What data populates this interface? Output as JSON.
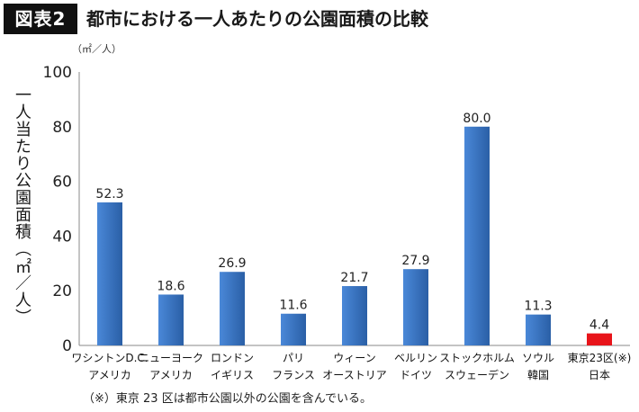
{
  "header": {
    "badge": "図表2",
    "title": "都市における一人あたりの公園面積の比較"
  },
  "footnote": "（※）東京 23 区は都市公園以外の公園を含んでいる。",
  "chart_data": {
    "type": "bar",
    "title": "都市における一人あたりの公園面積の比較",
    "unit_label": "（㎡／人）",
    "ylabel": "一人当たり公園面積（㎡／人）",
    "xlabel": "",
    "ylim": [
      0,
      100
    ],
    "yticks": [
      0,
      20,
      40,
      60,
      80,
      100
    ],
    "grid": false,
    "categories": [
      {
        "city": "ワシントンD.C.",
        "country": "アメリカ"
      },
      {
        "city": "ニューヨーク",
        "country": "アメリカ"
      },
      {
        "city": "ロンドン",
        "country": "イギリス"
      },
      {
        "city": "パリ",
        "country": "フランス"
      },
      {
        "city": "ウィーン",
        "country": "オーストリア"
      },
      {
        "city": "ベルリン",
        "country": "ドイツ"
      },
      {
        "city": "ストックホルム",
        "country": "スウェーデン"
      },
      {
        "city": "ソウル",
        "country": "韓国"
      },
      {
        "city": "東京23区(※)",
        "country": "日本"
      }
    ],
    "values": [
      52.3,
      18.6,
      26.9,
      11.6,
      21.7,
      27.9,
      80.0,
      11.3,
      4.4
    ],
    "value_labels": [
      "52.3",
      "18.6",
      "26.9",
      "11.6",
      "21.7",
      "27.9",
      "80.0",
      "11.3",
      "4.4"
    ],
    "colors": {
      "bar": "#3a78c8",
      "bar_dark": "#2a5fa6",
      "highlight": "#e8141a",
      "highlight_index": 8
    }
  }
}
